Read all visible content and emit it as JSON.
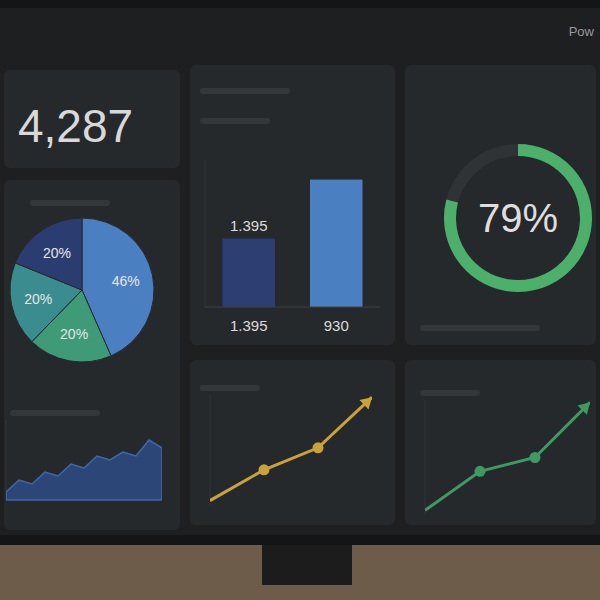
{
  "header": {
    "brand": "Pow"
  },
  "kpi": {
    "value": "4,287"
  },
  "chart_data": [
    {
      "type": "pie",
      "values": [
        46,
        20,
        20,
        20
      ],
      "value_labels": [
        "46%",
        "20%",
        "20%",
        "20%"
      ],
      "colors": [
        "#4a7fc1",
        "#3f9a78",
        "#3a8c8f",
        "#2b3d70"
      ],
      "data_labels": true
    },
    {
      "type": "bar",
      "categories": [
        "1.395",
        "930"
      ],
      "values": [
        1.395,
        2.6
      ],
      "value_labels": [
        "1.395",
        null
      ],
      "colors": [
        "#2d3f72",
        "#4a7fc1"
      ],
      "ylim": [
        0,
        3
      ],
      "data_labels": true,
      "tick_labels": "x"
    },
    {
      "type": "gauge",
      "values": [
        79
      ],
      "value_labels": [
        "79%"
      ],
      "ylim": [
        0,
        100
      ],
      "color": "#4caf6a",
      "data_labels": true
    },
    {
      "type": "area",
      "values": [
        1,
        2.5,
        2,
        3.5,
        3,
        4.5,
        4,
        5.5,
        5,
        6,
        5.5,
        7.5,
        6.5
      ],
      "ylim": [
        0,
        10
      ],
      "color": "#2f5290",
      "tick_labels": false
    },
    {
      "type": "line",
      "values": [
        0.2,
        1.6,
        2.6,
        4.9
      ],
      "ylim": [
        0,
        5
      ],
      "color": "#c9a23a",
      "marker": "circle",
      "line_style": "arrow",
      "tick_labels": false
    },
    {
      "type": "line",
      "values": [
        0.2,
        1.9,
        2.5,
        4.9
      ],
      "ylim": [
        0,
        5
      ],
      "color": "#3e9a62",
      "marker": "circle",
      "line_style": "arrow",
      "tick_labels": false
    }
  ]
}
